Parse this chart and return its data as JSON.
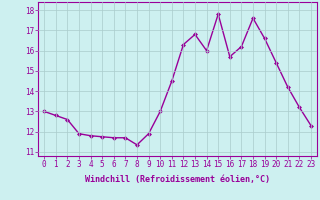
{
  "x": [
    0,
    1,
    2,
    3,
    4,
    5,
    6,
    7,
    8,
    9,
    10,
    11,
    12,
    13,
    14,
    15,
    16,
    17,
    18,
    19,
    20,
    21,
    22,
    23
  ],
  "y": [
    13.0,
    12.8,
    12.6,
    11.9,
    11.8,
    11.75,
    11.7,
    11.7,
    11.35,
    11.9,
    13.0,
    14.5,
    16.3,
    16.8,
    16.0,
    17.8,
    15.7,
    16.2,
    17.6,
    16.6,
    15.4,
    14.2,
    13.2,
    12.3
  ],
  "line_color": "#990099",
  "marker": "D",
  "marker_size": 2.0,
  "xlabel": "Windchill (Refroidissement éolien,°C)",
  "xlabel_fontsize": 6.0,
  "ylabel_ticks": [
    11,
    12,
    13,
    14,
    15,
    16,
    17,
    18
  ],
  "xlim": [
    -0.5,
    23.5
  ],
  "ylim": [
    10.8,
    18.4
  ],
  "bg_color": "#cdf0f0",
  "grid_color": "#aacccc",
  "tick_fontsize": 5.5,
  "line_width": 1.0
}
